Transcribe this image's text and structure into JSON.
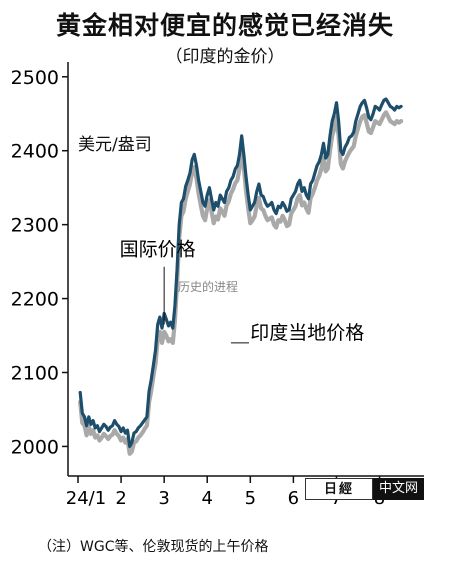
{
  "title": "黄金相对便宜的感觉已经消失",
  "subtitle": "（印度的金价）",
  "unit": "美元/盎司",
  "note": "（注）WGC等、伦敦现货的上午价格",
  "watermark": "历史的进程",
  "badge": {
    "logo": "日經",
    "cn": "中文网"
  },
  "colors": {
    "international": "#1d4e6b",
    "india": "#a9a9a9",
    "axis": "#111111"
  },
  "chart_data": {
    "type": "line",
    "xlabel": "",
    "ylabel": "美元/盎司",
    "ylim": [
      1960,
      2520
    ],
    "yticks": [
      2000,
      2100,
      2200,
      2300,
      2400,
      2500
    ],
    "xlim": [
      0,
      7.8
    ],
    "xticks": [
      {
        "pos": 0,
        "label": "24/1"
      },
      {
        "pos": 1,
        "label": "2"
      },
      {
        "pos": 2,
        "label": "3"
      },
      {
        "pos": 3,
        "label": "4"
      },
      {
        "pos": 4,
        "label": "5"
      },
      {
        "pos": 5,
        "label": "6"
      },
      {
        "pos": 6,
        "label": "7"
      },
      {
        "pos": 7,
        "label": "8"
      }
    ],
    "series": [
      {
        "name": "国际价格",
        "x": [
          0.05,
          0.1,
          0.15,
          0.2,
          0.25,
          0.3,
          0.35,
          0.4,
          0.45,
          0.5,
          0.55,
          0.6,
          0.65,
          0.7,
          0.75,
          0.8,
          0.85,
          0.9,
          0.95,
          1.0,
          1.05,
          1.1,
          1.15,
          1.2,
          1.25,
          1.3,
          1.35,
          1.4,
          1.45,
          1.5,
          1.55,
          1.6,
          1.65,
          1.7,
          1.75,
          1.8,
          1.85,
          1.9,
          1.95,
          2.0,
          2.05,
          2.1,
          2.15,
          2.2,
          2.25,
          2.3,
          2.35,
          2.4,
          2.45,
          2.5,
          2.55,
          2.6,
          2.65,
          2.7,
          2.75,
          2.8,
          2.85,
          2.9,
          2.95,
          3.0,
          3.05,
          3.1,
          3.15,
          3.2,
          3.25,
          3.3,
          3.35,
          3.4,
          3.45,
          3.5,
          3.55,
          3.6,
          3.65,
          3.7,
          3.75,
          3.8,
          3.85,
          3.9,
          3.95,
          4.0,
          4.05,
          4.1,
          4.15,
          4.2,
          4.25,
          4.3,
          4.35,
          4.4,
          4.45,
          4.5,
          4.55,
          4.6,
          4.65,
          4.7,
          4.75,
          4.8,
          4.85,
          4.9,
          4.95,
          5.0,
          5.05,
          5.1,
          5.15,
          5.2,
          5.25,
          5.3,
          5.35,
          5.4,
          5.45,
          5.5,
          5.55,
          5.6,
          5.65,
          5.7,
          5.75,
          5.8,
          5.85,
          5.9,
          5.95,
          6.0,
          6.05,
          6.1,
          6.15,
          6.2,
          6.25,
          6.3,
          6.35,
          6.4,
          6.45,
          6.5,
          6.55,
          6.6,
          6.65,
          6.7,
          6.75,
          6.8,
          6.85,
          6.9,
          6.95,
          7.0,
          7.05,
          7.1,
          7.15,
          7.2,
          7.25,
          7.3,
          7.35,
          7.4,
          7.45,
          7.5
        ],
        "values": [
          2073,
          2045,
          2040,
          2028,
          2040,
          2030,
          2035,
          2025,
          2028,
          2020,
          2025,
          2030,
          2027,
          2022,
          2026,
          2028,
          2035,
          2030,
          2027,
          2020,
          2025,
          2018,
          2022,
          2000,
          2005,
          2018,
          2020,
          2025,
          2028,
          2032,
          2036,
          2040,
          2075,
          2090,
          2110,
          2130,
          2165,
          2175,
          2160,
          2180,
          2172,
          2163,
          2168,
          2160,
          2190,
          2240,
          2300,
          2330,
          2335,
          2352,
          2360,
          2370,
          2388,
          2395,
          2380,
          2360,
          2345,
          2330,
          2325,
          2340,
          2350,
          2335,
          2320,
          2330,
          2325,
          2340,
          2335,
          2330,
          2345,
          2350,
          2360,
          2365,
          2375,
          2380,
          2395,
          2420,
          2395,
          2365,
          2340,
          2320,
          2325,
          2330,
          2345,
          2355,
          2340,
          2338,
          2330,
          2325,
          2327,
          2330,
          2320,
          2315,
          2325,
          2323,
          2330,
          2325,
          2318,
          2320,
          2335,
          2340,
          2345,
          2355,
          2360,
          2345,
          2350,
          2340,
          2335,
          2355,
          2360,
          2370,
          2380,
          2385,
          2395,
          2410,
          2390,
          2395,
          2420,
          2440,
          2450,
          2465,
          2440,
          2400,
          2395,
          2405,
          2410,
          2418,
          2420,
          2425,
          2440,
          2450,
          2460,
          2465,
          2468,
          2458,
          2445,
          2442,
          2450,
          2460,
          2458,
          2455,
          2462,
          2468,
          2470,
          2465,
          2460,
          2458,
          2455,
          2460,
          2458,
          2460
        ]
      },
      {
        "name": "印度当地价格",
        "x": [
          0.05,
          0.1,
          0.15,
          0.2,
          0.25,
          0.3,
          0.35,
          0.4,
          0.45,
          0.5,
          0.55,
          0.6,
          0.65,
          0.7,
          0.75,
          0.8,
          0.85,
          0.9,
          0.95,
          1.0,
          1.05,
          1.1,
          1.15,
          1.2,
          1.25,
          1.3,
          1.35,
          1.4,
          1.45,
          1.5,
          1.55,
          1.6,
          1.65,
          1.7,
          1.75,
          1.8,
          1.85,
          1.9,
          1.95,
          2.0,
          2.05,
          2.1,
          2.15,
          2.2,
          2.25,
          2.3,
          2.35,
          2.4,
          2.45,
          2.5,
          2.55,
          2.6,
          2.65,
          2.7,
          2.75,
          2.8,
          2.85,
          2.9,
          2.95,
          3.0,
          3.05,
          3.1,
          3.15,
          3.2,
          3.25,
          3.3,
          3.35,
          3.4,
          3.45,
          3.5,
          3.55,
          3.6,
          3.65,
          3.7,
          3.75,
          3.8,
          3.85,
          3.9,
          3.95,
          4.0,
          4.05,
          4.1,
          4.15,
          4.2,
          4.25,
          4.3,
          4.35,
          4.4,
          4.45,
          4.5,
          4.55,
          4.6,
          4.65,
          4.7,
          4.75,
          4.8,
          4.85,
          4.9,
          4.95,
          5.0,
          5.05,
          5.1,
          5.15,
          5.2,
          5.25,
          5.3,
          5.35,
          5.4,
          5.45,
          5.5,
          5.55,
          5.6,
          5.65,
          5.7,
          5.75,
          5.8,
          5.85,
          5.9,
          5.95,
          6.0,
          6.05,
          6.1,
          6.15,
          6.2,
          6.25,
          6.3,
          6.35,
          6.4,
          6.45,
          6.5,
          6.55,
          6.6,
          6.65,
          6.7,
          6.75,
          6.8,
          6.85,
          6.9,
          6.95,
          7.0,
          7.05,
          7.1,
          7.15,
          7.2,
          7.25,
          7.3,
          7.35,
          7.4,
          7.45,
          7.5
        ],
        "values": [
          2060,
          2032,
          2028,
          2015,
          2027,
          2017,
          2022,
          2012,
          2015,
          2008,
          2012,
          2017,
          2014,
          2010,
          2014,
          2016,
          2022,
          2017,
          2014,
          2008,
          2012,
          2005,
          2010,
          1990,
          1993,
          2005,
          2007,
          2012,
          2015,
          2019,
          2024,
          2028,
          2060,
          2075,
          2095,
          2112,
          2145,
          2155,
          2140,
          2155,
          2150,
          2142,
          2145,
          2140,
          2170,
          2222,
          2282,
          2312,
          2318,
          2335,
          2345,
          2355,
          2372,
          2378,
          2362,
          2342,
          2326,
          2312,
          2306,
          2322,
          2333,
          2318,
          2302,
          2311,
          2307,
          2322,
          2318,
          2312,
          2326,
          2332,
          2342,
          2348,
          2356,
          2360,
          2376,
          2402,
          2378,
          2346,
          2322,
          2302,
          2306,
          2311,
          2326,
          2336,
          2322,
          2320,
          2312,
          2306,
          2308,
          2310,
          2300,
          2296,
          2306,
          2304,
          2312,
          2306,
          2298,
          2300,
          2315,
          2320,
          2325,
          2336,
          2340,
          2326,
          2330,
          2322,
          2316,
          2336,
          2342,
          2350,
          2360,
          2366,
          2376,
          2390,
          2372,
          2376,
          2400,
          2420,
          2430,
          2445,
          2420,
          2382,
          2376,
          2386,
          2392,
          2398,
          2402,
          2406,
          2420,
          2430,
          2440,
          2446,
          2448,
          2438,
          2426,
          2424,
          2432,
          2440,
          2438,
          2436,
          2442,
          2448,
          2452,
          2446,
          2440,
          2438,
          2436,
          2440,
          2438,
          2440
        ]
      }
    ],
    "annotations": [
      {
        "text": "国际价格",
        "series": "国际价格"
      },
      {
        "text": "印度当地价格",
        "series": "印度当地价格"
      }
    ]
  }
}
